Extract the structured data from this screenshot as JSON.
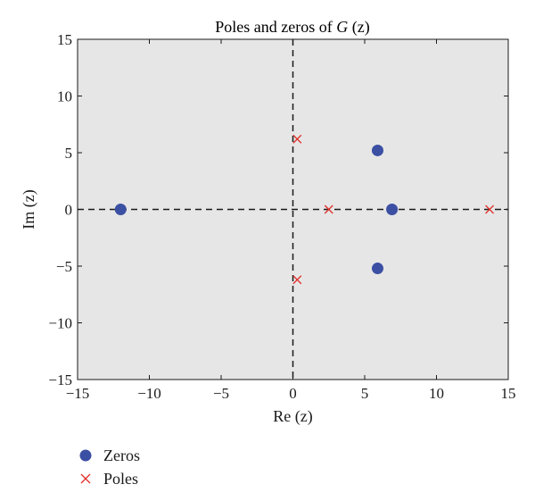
{
  "chart_data": {
    "type": "scatter",
    "title_prefix": "Poles and zeros of ",
    "title_var": "G",
    "title_suffix": " (z)",
    "xlabel": "Re (z)",
    "ylabel": "Im (z)",
    "xlim": [
      -15,
      15
    ],
    "ylim": [
      -15,
      15
    ],
    "xticks": [
      -15,
      -10,
      -5,
      0,
      5,
      10,
      15
    ],
    "yticks": [
      -15,
      -10,
      -5,
      0,
      5,
      10,
      15
    ],
    "xtick_labels": [
      "−15",
      "−10",
      "−5",
      "0",
      "5",
      "10",
      "15"
    ],
    "ytick_labels": [
      "−15",
      "−10",
      "−5",
      "0",
      "5",
      "10",
      "15"
    ],
    "grid": false,
    "reference_lines": [
      "x=0",
      "y=0"
    ],
    "legend_position": "bottom-left",
    "series": [
      {
        "name": "Zeros",
        "marker": "circle",
        "color": "#3b4fa3",
        "points": [
          {
            "x": -12.0,
            "y": 0.0
          },
          {
            "x": 5.9,
            "y": 5.2
          },
          {
            "x": 6.9,
            "y": 0.0
          },
          {
            "x": 5.9,
            "y": -5.2
          }
        ]
      },
      {
        "name": "Poles",
        "marker": "x",
        "color": "#e0302a",
        "points": [
          {
            "x": 0.3,
            "y": 6.2
          },
          {
            "x": 2.5,
            "y": 0.0
          },
          {
            "x": 13.7,
            "y": 0.0
          },
          {
            "x": 0.3,
            "y": -6.2
          }
        ]
      }
    ]
  },
  "colors": {
    "plot_background": "#e6e6e6",
    "axis": "#1a1a1a"
  }
}
